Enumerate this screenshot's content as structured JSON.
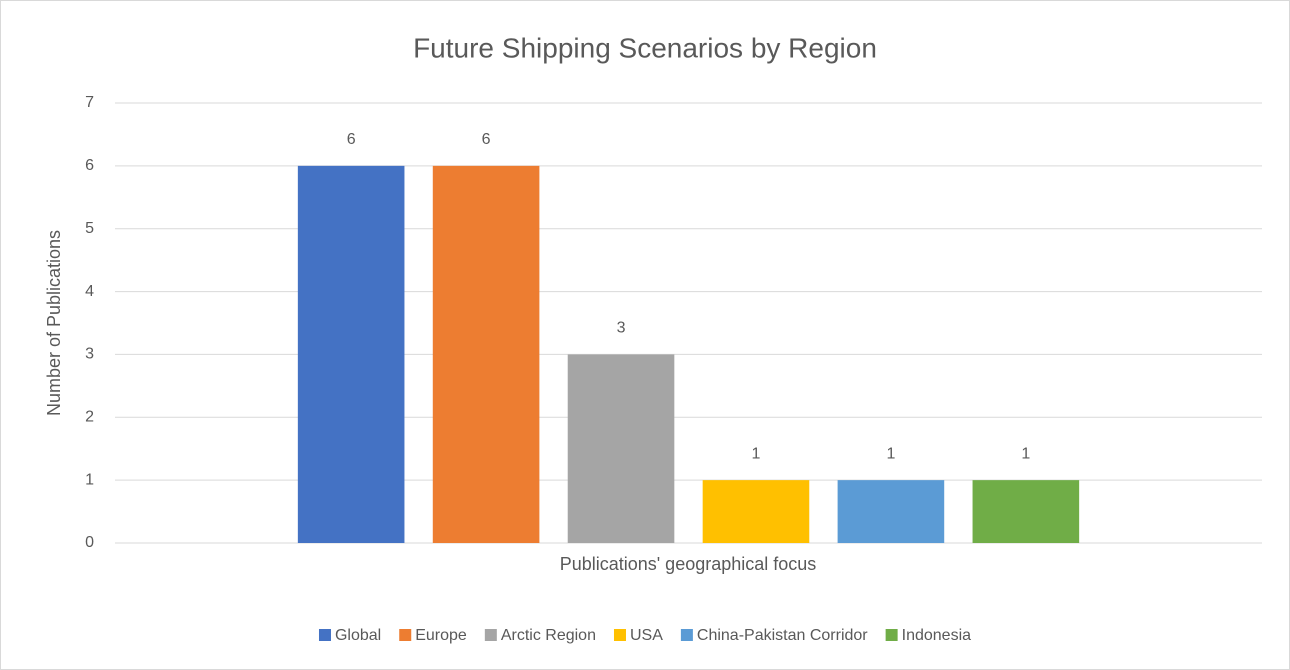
{
  "chart_data": {
    "type": "bar",
    "title": "Future Shipping Scenarios by Region",
    "x_label": "Publications' geographical focus",
    "y_label": "Number of Publications",
    "categories": [
      null
    ],
    "series": [
      {
        "name": "Global",
        "color": "#4472c4",
        "values": [
          6
        ]
      },
      {
        "name": "Europe",
        "color": "#ed7d31",
        "values": [
          6
        ]
      },
      {
        "name": "Arctic Region",
        "color": "#a5a5a5",
        "values": [
          3
        ]
      },
      {
        "name": "USA",
        "color": "#ffc000",
        "values": [
          1
        ]
      },
      {
        "name": "China-Pakistan Corridor",
        "color": "#5b9bd5",
        "values": [
          1
        ]
      },
      {
        "name": "Indonesia",
        "color": "#70ad47",
        "values": [
          1
        ]
      }
    ],
    "ylim": [
      0,
      7
    ],
    "yticks": [
      0,
      1,
      2,
      3,
      4,
      5,
      6,
      7
    ],
    "grid": true,
    "legend": "bottom"
  }
}
